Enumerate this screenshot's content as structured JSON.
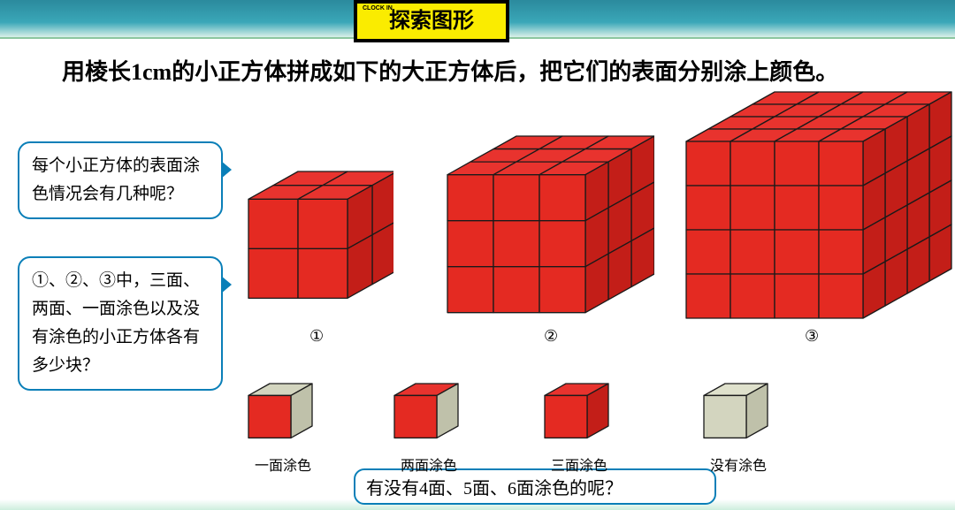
{
  "title": "探索图形",
  "title_small": "CLOCK IN",
  "main_text": "用棱长1cm的小正方体拼成如下的大正方体后，把它们的表面分别涂上颜色。",
  "bubble1": "每个小正方体的表面涂色情况会有几种呢？",
  "bubble2": "①、②、③中，三面、两面、一面涂色以及没有涂色的小正方体各有多少块？",
  "bubble3": "有没有4面、5面、6面涂色的呢？",
  "big_cubes": {
    "labels": [
      "①",
      "②",
      "③"
    ],
    "sizes": [
      2,
      3,
      4
    ],
    "face_color": "#e42a22",
    "top_color": "#e8332e",
    "side_color": "#c31e18",
    "edge_color": "#1a1a1a"
  },
  "small_cubes": [
    {
      "label": "一面涂色",
      "faces": {
        "front": "#e42a22",
        "top": "#d3d5bf",
        "side": "#bfc1aa"
      }
    },
    {
      "label": "两面涂色",
      "faces": {
        "front": "#e42a22",
        "top": "#e8332e",
        "side": "#bfc1aa"
      }
    },
    {
      "label": "三面涂色",
      "faces": {
        "front": "#e42a22",
        "top": "#e8332e",
        "side": "#c31e18"
      }
    },
    {
      "label": "没有涂色",
      "faces": {
        "front": "#d3d5bf",
        "top": "#dfe1cc",
        "side": "#bfc1aa"
      }
    }
  ],
  "style": {
    "background": "#ffffff",
    "header_gradient": [
      "#2b8a9d",
      "#3aa7b8",
      "#d9f0e8"
    ],
    "bubble_border": "#0a7fb8",
    "title_bg": "#faec00",
    "text_color": "#000000",
    "main_fontsize": 26,
    "bubble_fontsize": 19
  }
}
